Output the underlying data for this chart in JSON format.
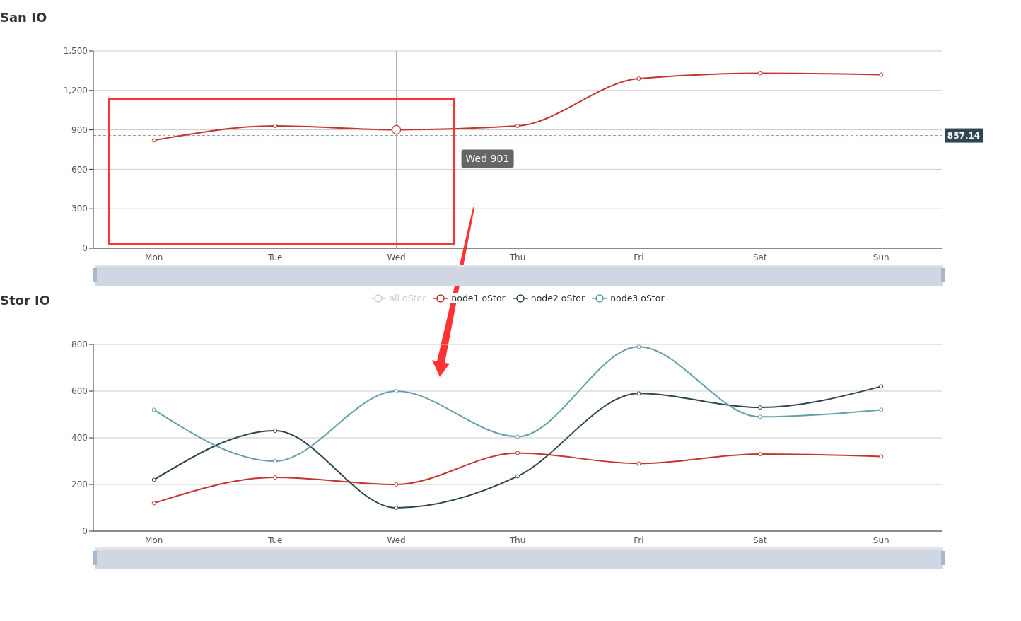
{
  "chart_data": [
    {
      "type": "line",
      "title": "San IO",
      "categories": [
        "Mon",
        "Tue",
        "Wed",
        "Thu",
        "Fri",
        "Sat",
        "Sun"
      ],
      "series": [
        {
          "color": "#c23531",
          "values": [
            820,
            930,
            901,
            930,
            1290,
            1330,
            1320
          ]
        }
      ],
      "ylim": [
        0,
        1500
      ],
      "yticks": [
        0,
        300,
        600,
        900,
        {
          "value": 1200,
          "label": "1,200"
        },
        {
          "value": 1500,
          "label": "1,500"
        }
      ],
      "grid": "y",
      "marker": "circle",
      "legend": false,
      "ref_lines": [
        {
          "axis": "y",
          "value": 857.14,
          "label": "857.14",
          "color": "#999999",
          "line_style": "dashed"
        },
        {
          "axis": "x",
          "value": "Wed",
          "color": "#aaaaaa",
          "line_style": "solid"
        }
      ],
      "annotations": [
        "Wed 901"
      ]
    },
    {
      "type": "line",
      "title": "Stor IO",
      "categories": [
        "Mon",
        "Tue",
        "Wed",
        "Thu",
        "Fri",
        "Sat",
        "Sun"
      ],
      "series": [
        {
          "name": "all oStor",
          "color": "#cccccc",
          "values": [
            null,
            null,
            null,
            null,
            null,
            null,
            null
          ]
        },
        {
          "name": "node1 oStor",
          "color": "#c23531",
          "values": [
            120,
            230,
            200,
            335,
            290,
            330,
            320
          ]
        },
        {
          "name": "node2 oStor",
          "color": "#2f4554",
          "values": [
            220,
            430,
            100,
            235,
            590,
            530,
            620
          ]
        },
        {
          "name": "node3 oStor",
          "color": "#61a0a8",
          "values": [
            520,
            300,
            600,
            405,
            790,
            490,
            520
          ]
        }
      ],
      "ylim": [
        0,
        800
      ],
      "yticks": [
        0,
        200,
        400,
        600,
        800
      ],
      "grid": "y",
      "marker": "circle",
      "legend": "top"
    }
  ]
}
